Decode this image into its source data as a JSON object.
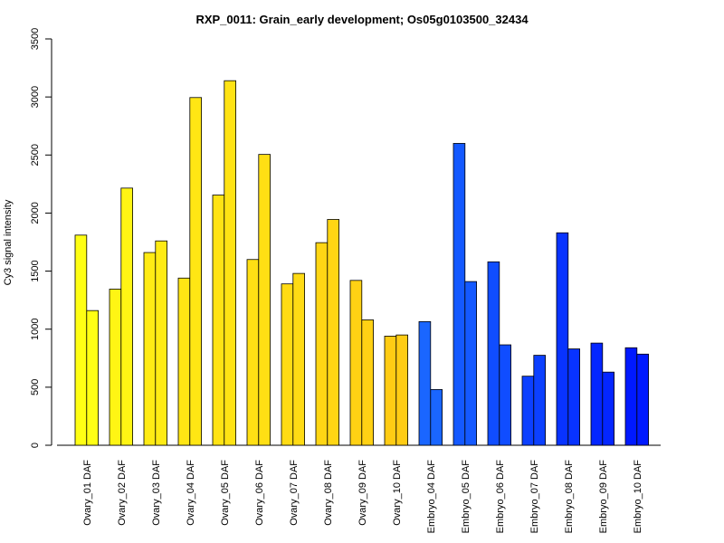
{
  "chart_data": {
    "type": "bar",
    "title": "RXP_0011: Grain_early development; Os05g0103500_32434",
    "xlabel": "",
    "ylabel": "Cy3 signal intensity",
    "ylim": [
      0,
      3500
    ],
    "yticks": [
      "0",
      "500",
      "1000",
      "1500",
      "2000",
      "2500",
      "3000",
      "3500"
    ],
    "grid": false,
    "categories": [
      "Ovary_01 DAF",
      "Ovary_02 DAF",
      "Ovary_03 DAF",
      "Ovary_04 DAF",
      "Ovary_05 DAF",
      "Ovary_06 DAF",
      "Ovary_07 DAF",
      "Ovary_08 DAF",
      "Ovary_09 DAF",
      "Ovary_10 DAF",
      "Embryo_04 DAF",
      "Embryo_05 DAF",
      "Embryo_06 DAF",
      "Embryo_07 DAF",
      "Embryo_08 DAF",
      "Embryo_09 DAF",
      "Embryo_10 DAF"
    ],
    "series": [
      {
        "values": [
          1810,
          1345,
          1660,
          1440,
          2155,
          1600,
          1390,
          1745,
          1420,
          940,
          1065,
          2600,
          1580,
          595,
          1830,
          880,
          840
        ]
      },
      {
        "values": [
          1160,
          2215,
          1760,
          2995,
          3140,
          2505,
          1480,
          1945,
          1080,
          950,
          480,
          1410,
          865,
          775,
          830,
          630,
          785
        ]
      }
    ],
    "colors": [
      "#FFFF14",
      "#FFF514",
      "#FFEB14",
      "#FFE614",
      "#FFE314",
      "#FFDF14",
      "#FFDB14",
      "#FFD614",
      "#FFD114",
      "#FFCC14",
      "#1A66FF",
      "#1459FF",
      "#104DFF",
      "#0C40FF",
      "#0833FF",
      "#0426FF",
      "#0019FF"
    ]
  }
}
